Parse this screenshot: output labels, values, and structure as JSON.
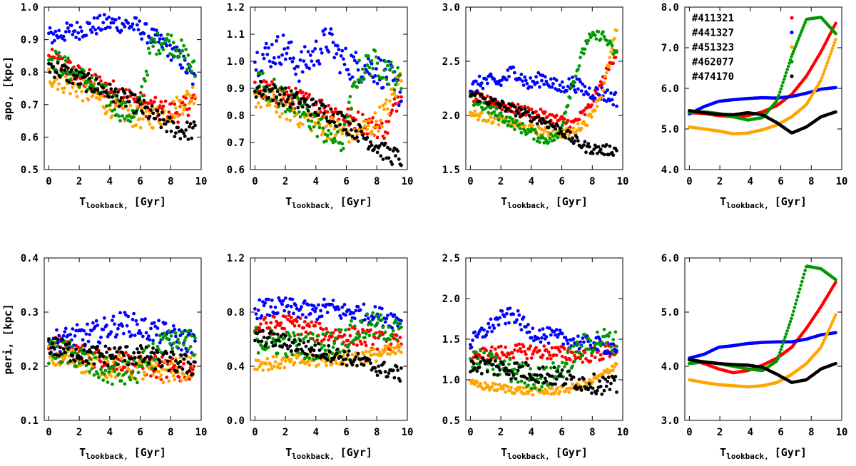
{
  "figure": {
    "series_colors": {
      "#411321": "#ff0000",
      "#441327": "#0000ff",
      "#451323": "#ffa500",
      "#462077": "#009900",
      "#474170": "#000000"
    }
  },
  "chart_data": [
    {
      "type": "scatter",
      "row": "apo",
      "column": 1,
      "ylabel": "apo, [kpc]",
      "xlabel_main": "T",
      "xlabel_sub": "lookback,",
      "xlabel_unit": "[Gyr]",
      "xlim": [
        -0.3,
        10
      ],
      "ylim": [
        0.5,
        1.0
      ],
      "xticks": [
        "0",
        "2",
        "4",
        "6",
        "8",
        "10"
      ],
      "xtick_values": [
        0,
        2,
        4,
        6,
        8,
        10
      ],
      "yticks": [
        "0.5",
        "0.6",
        "0.7",
        "0.8",
        "0.9",
        "1.0"
      ],
      "ytick_values": [
        0.5,
        0.6,
        0.7,
        0.8,
        0.9,
        1.0
      ],
      "grid": false,
      "legend": false,
      "series": [
        {
          "label": "#411321",
          "values_at_t0_to_t9.6": [
            0.84,
            0.82,
            0.79,
            0.77,
            0.75,
            0.73,
            0.71,
            0.69,
            0.68,
            0.68,
            0.72
          ],
          "spread": 0.035
        },
        {
          "label": "#441327",
          "values_at_t0_to_t9.6": [
            0.91,
            0.92,
            0.93,
            0.94,
            0.95,
            0.95,
            0.94,
            0.91,
            0.88,
            0.84,
            0.77
          ],
          "spread": 0.03
        },
        {
          "label": "#451323",
          "values_at_t0_to_t9.6": [
            0.79,
            0.77,
            0.75,
            0.73,
            0.7,
            0.68,
            0.66,
            0.66,
            0.67,
            0.7,
            0.74
          ],
          "spread": 0.035
        },
        {
          "label": "#462077",
          "values_at_t0_to_t9.6": [
            0.85,
            0.82,
            0.79,
            0.76,
            0.72,
            0.68,
            0.66,
            0.88,
            0.9,
            0.87,
            0.8
          ],
          "spread": 0.035
        },
        {
          "label": "#474170",
          "values_at_t0_to_t9.6": [
            0.82,
            0.8,
            0.78,
            0.76,
            0.74,
            0.72,
            0.7,
            0.67,
            0.64,
            0.62,
            0.62
          ],
          "spread": 0.03
        }
      ]
    },
    {
      "type": "scatter",
      "row": "apo",
      "column": 2,
      "xlabel_main": "T",
      "xlabel_sub": "lookback,",
      "xlabel_unit": "[Gyr]",
      "xlim": [
        -0.3,
        10
      ],
      "ylim": [
        0.6,
        1.2
      ],
      "xticks": [
        "0",
        "2",
        "4",
        "6",
        "8",
        "10"
      ],
      "xtick_values": [
        0,
        2,
        4,
        6,
        8,
        10
      ],
      "yticks": [
        "0.6",
        "0.7",
        "0.8",
        "0.9",
        "1.0",
        "1.1",
        "1.2"
      ],
      "ytick_values": [
        0.6,
        0.7,
        0.8,
        0.9,
        1.0,
        1.1,
        1.2
      ],
      "grid": false,
      "legend": false,
      "series": [
        {
          "label": "#411321",
          "values_at_t0_to_t9.6": [
            0.9,
            0.89,
            0.87,
            0.86,
            0.84,
            0.82,
            0.8,
            0.78,
            0.76,
            0.75,
            0.9
          ],
          "spread": 0.04
        },
        {
          "label": "#441327",
          "values_at_t0_to_t9.6": [
            1.0,
            1.03,
            1.05,
            0.98,
            1.02,
            1.08,
            1.0,
            0.98,
            0.98,
            0.95,
            0.88
          ],
          "spread": 0.06
        },
        {
          "label": "#451323",
          "values_at_t0_to_t9.6": [
            0.87,
            0.85,
            0.83,
            0.8,
            0.78,
            0.76,
            0.74,
            0.74,
            0.76,
            0.82,
            0.95
          ],
          "spread": 0.045
        },
        {
          "label": "#462077",
          "values_at_t0_to_t9.6": [
            0.93,
            0.9,
            0.86,
            0.82,
            0.78,
            0.73,
            0.7,
            0.95,
            1.0,
            0.97,
            0.92
          ],
          "spread": 0.05
        },
        {
          "label": "#474170",
          "values_at_t0_to_t9.6": [
            0.9,
            0.89,
            0.87,
            0.85,
            0.83,
            0.81,
            0.78,
            0.74,
            0.7,
            0.66,
            0.64
          ],
          "spread": 0.035
        }
      ]
    },
    {
      "type": "scatter",
      "row": "apo",
      "column": 3,
      "xlabel_main": "T",
      "xlabel_sub": "lookback,",
      "xlabel_unit": "[Gyr]",
      "xlim": [
        -0.3,
        10
      ],
      "ylim": [
        1.5,
        3.0
      ],
      "xticks": [
        "0",
        "2",
        "4",
        "6",
        "8",
        "10"
      ],
      "xtick_values": [
        0,
        2,
        4,
        6,
        8,
        10
      ],
      "yticks": [
        "1.5",
        "2.0",
        "2.5",
        "3.0"
      ],
      "ytick_values": [
        1.5,
        2.0,
        2.5,
        3.0
      ],
      "grid": false,
      "legend": false,
      "series": [
        {
          "label": "#411321",
          "values_at_t0_to_t9.6": [
            2.18,
            2.14,
            2.1,
            2.06,
            2.03,
            2.0,
            1.96,
            1.92,
            2.05,
            2.3,
            2.6
          ],
          "spread": 0.05
        },
        {
          "label": "#441327",
          "values_at_t0_to_t9.6": [
            2.25,
            2.32,
            2.3,
            2.42,
            2.28,
            2.35,
            2.25,
            2.3,
            2.22,
            2.2,
            2.15
          ],
          "spread": 0.07
        },
        {
          "label": "#451323",
          "values_at_t0_to_t9.6": [
            2.02,
            1.98,
            1.95,
            1.92,
            1.88,
            1.85,
            1.83,
            1.85,
            1.95,
            2.2,
            2.8
          ],
          "spread": 0.04
        },
        {
          "label": "#462077",
          "values_at_t0_to_t9.6": [
            2.15,
            2.08,
            2.0,
            1.92,
            1.85,
            1.78,
            1.8,
            2.3,
            2.7,
            2.75,
            2.55
          ],
          "spread": 0.05
        },
        {
          "label": "#474170",
          "values_at_t0_to_t9.6": [
            2.2,
            2.15,
            2.1,
            2.05,
            2.0,
            1.95,
            1.88,
            1.78,
            1.7,
            1.68,
            1.68
          ],
          "spread": 0.05
        }
      ]
    },
    {
      "type": "line",
      "row": "apo",
      "column": 4,
      "xlabel_main": "T",
      "xlabel_sub": "lookback,",
      "xlabel_unit": "[Gyr]",
      "xlim": [
        -0.3,
        10
      ],
      "ylim": [
        4.0,
        8.0
      ],
      "xticks": [
        "0",
        "2",
        "4",
        "6",
        "8",
        "10"
      ],
      "xtick_values": [
        0,
        2,
        4,
        6,
        8,
        10
      ],
      "yticks": [
        "4.0",
        "5.0",
        "6.0",
        "7.0",
        "8.0"
      ],
      "ytick_values": [
        4.0,
        5.0,
        6.0,
        7.0,
        8.0
      ],
      "grid": false,
      "legend": true,
      "legend_position": "top-left",
      "series": [
        {
          "label": "#411321",
          "values_at_t0_to_t9.6": [
            5.4,
            5.38,
            5.33,
            5.3,
            5.33,
            5.42,
            5.58,
            5.85,
            6.3,
            6.9,
            7.6
          ],
          "spread": 0
        },
        {
          "label": "#441327",
          "values_at_t0_to_t9.6": [
            5.37,
            5.55,
            5.68,
            5.72,
            5.75,
            5.77,
            5.76,
            5.8,
            5.88,
            5.98,
            6.02
          ],
          "spread": 0
        },
        {
          "label": "#451323",
          "values_at_t0_to_t9.6": [
            5.05,
            5.0,
            4.95,
            4.88,
            4.9,
            4.98,
            5.1,
            5.3,
            5.6,
            6.2,
            7.2
          ],
          "spread": 0
        },
        {
          "label": "#462077",
          "values_at_t0_to_t9.6": [
            5.4,
            5.42,
            5.38,
            5.3,
            5.22,
            5.28,
            5.7,
            6.8,
            7.7,
            7.75,
            7.35
          ],
          "spread": 0
        },
        {
          "label": "#474170",
          "values_at_t0_to_t9.6": [
            5.45,
            5.4,
            5.36,
            5.35,
            5.4,
            5.35,
            5.15,
            4.9,
            5.05,
            5.3,
            5.42
          ],
          "spread": 0
        }
      ]
    },
    {
      "type": "scatter",
      "row": "peri",
      "column": 1,
      "ylabel": "peri, [kpc]",
      "xlabel_main": "T",
      "xlabel_sub": "lookback,",
      "xlabel_unit": "[Gyr]",
      "xlim": [
        -0.3,
        10
      ],
      "ylim": [
        0.1,
        0.4
      ],
      "xticks": [
        "0",
        "2",
        "4",
        "6",
        "8",
        "10"
      ],
      "xtick_values": [
        0,
        2,
        4,
        6,
        8,
        10
      ],
      "yticks": [
        "0.1",
        "0.2",
        "0.3",
        "0.4"
      ],
      "ytick_values": [
        0.1,
        0.2,
        0.3,
        0.4
      ],
      "grid": false,
      "legend": false,
      "series": [
        {
          "label": "#411321",
          "values_at_t0_to_t9.6": [
            0.24,
            0.23,
            0.225,
            0.22,
            0.215,
            0.21,
            0.205,
            0.2,
            0.195,
            0.19,
            0.2
          ],
          "spread": 0.022
        },
        {
          "label": "#441327",
          "values_at_t0_to_t9.6": [
            0.245,
            0.25,
            0.255,
            0.26,
            0.27,
            0.28,
            0.275,
            0.265,
            0.26,
            0.25,
            0.245
          ],
          "spread": 0.022
        },
        {
          "label": "#451323",
          "values_at_t0_to_t9.6": [
            0.22,
            0.215,
            0.21,
            0.205,
            0.2,
            0.2,
            0.195,
            0.19,
            0.19,
            0.195,
            0.2
          ],
          "spread": 0.022
        },
        {
          "label": "#462077",
          "values_at_t0_to_t9.6": [
            0.23,
            0.225,
            0.22,
            0.2,
            0.19,
            0.185,
            0.19,
            0.22,
            0.24,
            0.245,
            0.24
          ],
          "spread": 0.025
        },
        {
          "label": "#474170",
          "values_at_t0_to_t9.6": [
            0.24,
            0.23,
            0.225,
            0.22,
            0.22,
            0.22,
            0.22,
            0.215,
            0.21,
            0.205,
            0.2
          ],
          "spread": 0.02
        }
      ]
    },
    {
      "type": "scatter",
      "row": "peri",
      "column": 2,
      "xlabel_main": "T",
      "xlabel_sub": "lookback,",
      "xlabel_unit": "[Gyr]",
      "xlim": [
        -0.3,
        10
      ],
      "ylim": [
        0.0,
        1.2
      ],
      "xticks": [
        "0",
        "2",
        "4",
        "6",
        "8",
        "10"
      ],
      "xtick_values": [
        0,
        2,
        4,
        6,
        8,
        10
      ],
      "yticks": [
        "0.0",
        "0.4",
        "0.8",
        "1.2"
      ],
      "ytick_values": [
        0.0,
        0.4,
        0.8,
        1.2
      ],
      "grid": false,
      "legend": false,
      "series": [
        {
          "label": "#411321",
          "values_at_t0_to_t9.6": [
            0.68,
            0.7,
            0.72,
            0.7,
            0.66,
            0.64,
            0.62,
            0.62,
            0.6,
            0.58,
            0.56
          ],
          "spread": 0.07
        },
        {
          "label": "#441327",
          "values_at_t0_to_t9.6": [
            0.82,
            0.83,
            0.84,
            0.82,
            0.8,
            0.84,
            0.8,
            0.8,
            0.78,
            0.76,
            0.74
          ],
          "spread": 0.07
        },
        {
          "label": "#451323",
          "values_at_t0_to_t9.6": [
            0.42,
            0.42,
            0.43,
            0.44,
            0.44,
            0.45,
            0.46,
            0.47,
            0.48,
            0.5,
            0.52
          ],
          "spread": 0.05
        },
        {
          "label": "#462077",
          "values_at_t0_to_t9.6": [
            0.6,
            0.58,
            0.57,
            0.55,
            0.55,
            0.56,
            0.6,
            0.66,
            0.7,
            0.68,
            0.64
          ],
          "spread": 0.1
        },
        {
          "label": "#474170",
          "values_at_t0_to_t9.6": [
            0.62,
            0.6,
            0.58,
            0.55,
            0.52,
            0.5,
            0.47,
            0.44,
            0.4,
            0.37,
            0.34
          ],
          "spread": 0.06
        }
      ]
    },
    {
      "type": "scatter",
      "row": "peri",
      "column": 3,
      "xlabel_main": "T",
      "xlabel_sub": "lookback,",
      "xlabel_unit": "[Gyr]",
      "xlim": [
        -0.3,
        10
      ],
      "ylim": [
        0.5,
        2.5
      ],
      "xticks": [
        "0",
        "2",
        "4",
        "6",
        "8",
        "10"
      ],
      "xtick_values": [
        0,
        2,
        4,
        6,
        8,
        10
      ],
      "yticks": [
        "0.5",
        "1.0",
        "1.5",
        "2.0",
        "2.5"
      ],
      "ytick_values": [
        0.5,
        1.0,
        1.5,
        2.0,
        2.5
      ],
      "grid": false,
      "legend": false,
      "series": [
        {
          "label": "#411321",
          "values_at_t0_to_t9.6": [
            1.3,
            1.32,
            1.33,
            1.35,
            1.35,
            1.34,
            1.33,
            1.3,
            1.3,
            1.32,
            1.38
          ],
          "spread": 0.09
        },
        {
          "label": "#441327",
          "values_at_t0_to_t9.6": [
            1.45,
            1.6,
            1.75,
            1.8,
            1.6,
            1.55,
            1.52,
            1.48,
            1.45,
            1.42,
            1.4
          ],
          "spread": 0.1
        },
        {
          "label": "#451323",
          "values_at_t0_to_t9.6": [
            0.95,
            0.92,
            0.9,
            0.88,
            0.86,
            0.86,
            0.87,
            0.9,
            0.95,
            1.05,
            1.2
          ],
          "spread": 0.05
        },
        {
          "label": "#462077",
          "values_at_t0_to_t9.6": [
            1.25,
            1.2,
            1.15,
            1.1,
            1.05,
            1.0,
            1.1,
            1.3,
            1.45,
            1.5,
            1.45
          ],
          "spread": 0.15
        },
        {
          "label": "#474170",
          "values_at_t0_to_t9.6": [
            1.2,
            1.18,
            1.15,
            1.12,
            1.1,
            1.06,
            1.03,
            1.0,
            0.96,
            0.94,
            0.92
          ],
          "spread": 0.12
        }
      ]
    },
    {
      "type": "line",
      "row": "peri",
      "column": 4,
      "xlabel_main": "T",
      "xlabel_sub": "lookback,",
      "xlabel_unit": "[Gyr]",
      "xlim": [
        -0.3,
        10
      ],
      "ylim": [
        3.0,
        6.0
      ],
      "xticks": [
        "0",
        "2",
        "4",
        "6",
        "8",
        "10"
      ],
      "xtick_values": [
        0,
        2,
        4,
        6,
        8,
        10
      ],
      "yticks": [
        "3.0",
        "4.0",
        "5.0",
        "6.0"
      ],
      "ytick_values": [
        3.0,
        4.0,
        5.0,
        6.0
      ],
      "grid": false,
      "legend": false,
      "series": [
        {
          "label": "#411321",
          "values_at_t0_to_t9.6": [
            4.12,
            4.05,
            3.95,
            3.88,
            3.92,
            4.02,
            4.15,
            4.35,
            4.7,
            5.1,
            5.55
          ],
          "spread": 0
        },
        {
          "label": "#441327",
          "values_at_t0_to_t9.6": [
            4.15,
            4.22,
            4.35,
            4.38,
            4.42,
            4.44,
            4.45,
            4.45,
            4.5,
            4.58,
            4.62
          ],
          "spread": 0
        },
        {
          "label": "#451323",
          "values_at_t0_to_t9.6": [
            3.75,
            3.7,
            3.66,
            3.64,
            3.62,
            3.64,
            3.7,
            3.85,
            4.05,
            4.35,
            4.95
          ],
          "spread": 0
        },
        {
          "label": "#462077",
          "values_at_t0_to_t9.6": [
            4.05,
            4.08,
            4.05,
            4.0,
            3.95,
            3.92,
            4.1,
            4.9,
            5.85,
            5.8,
            5.6
          ],
          "spread": 0
        },
        {
          "label": "#474170",
          "values_at_t0_to_t9.6": [
            4.12,
            4.08,
            4.05,
            4.03,
            4.02,
            3.98,
            3.85,
            3.7,
            3.75,
            3.95,
            4.05
          ],
          "spread": 0
        }
      ]
    }
  ]
}
